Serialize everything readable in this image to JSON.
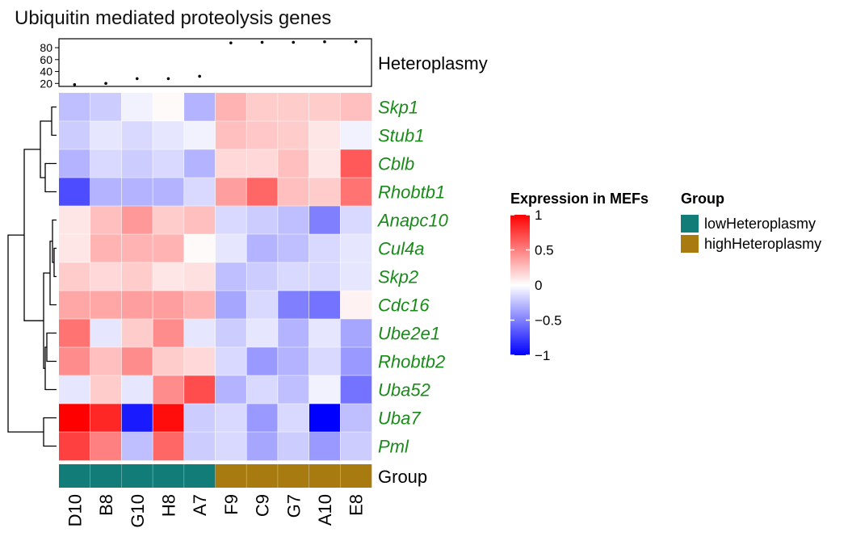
{
  "chart_data": {
    "type": "heatmap",
    "title": "Ubiquitin mediated proteolysis genes",
    "samples": [
      "D10",
      "B8",
      "G10",
      "H8",
      "A7",
      "F9",
      "C9",
      "G7",
      "A10",
      "E8"
    ],
    "genes": [
      "Skp1",
      "Stub1",
      "Cblb",
      "Rhobtb1",
      "Anapc10",
      "Cul4a",
      "Skp2",
      "Cdc16",
      "Ube2e1",
      "Rhobtb2",
      "Uba52",
      "Uba7",
      "Pml"
    ],
    "values": [
      [
        -0.25,
        -0.2,
        -0.05,
        0.02,
        -0.3,
        0.3,
        0.2,
        0.2,
        0.2,
        0.25
      ],
      [
        -0.2,
        -0.1,
        -0.15,
        -0.1,
        -0.05,
        0.25,
        0.22,
        0.2,
        0.1,
        -0.05
      ],
      [
        -0.3,
        -0.15,
        -0.2,
        -0.15,
        -0.3,
        0.15,
        0.15,
        0.25,
        0.1,
        0.65
      ],
      [
        -0.7,
        -0.3,
        -0.3,
        -0.3,
        -0.15,
        0.38,
        0.6,
        0.25,
        0.2,
        0.55
      ],
      [
        0.1,
        0.25,
        0.4,
        0.2,
        0.25,
        -0.15,
        -0.2,
        -0.25,
        -0.5,
        -0.15
      ],
      [
        0.1,
        0.3,
        0.3,
        0.3,
        0.02,
        -0.1,
        -0.3,
        -0.25,
        -0.15,
        -0.1
      ],
      [
        0.2,
        0.15,
        0.2,
        0.1,
        0.12,
        -0.25,
        -0.2,
        -0.15,
        -0.15,
        -0.1
      ],
      [
        0.35,
        0.35,
        0.38,
        0.38,
        0.3,
        -0.35,
        -0.15,
        -0.5,
        -0.55,
        0.05
      ],
      [
        0.55,
        -0.1,
        0.2,
        0.45,
        -0.1,
        -0.2,
        -0.1,
        -0.3,
        -0.1,
        -0.35
      ],
      [
        0.45,
        0.25,
        0.45,
        0.2,
        0.15,
        -0.15,
        -0.4,
        -0.3,
        -0.15,
        -0.4
      ],
      [
        -0.1,
        0.2,
        -0.1,
        0.45,
        0.7,
        -0.3,
        -0.15,
        -0.25,
        -0.05,
        -0.55
      ],
      [
        1.0,
        0.85,
        -0.9,
        0.95,
        -0.2,
        -0.15,
        -0.4,
        -0.15,
        -1.0,
        -0.25
      ],
      [
        0.75,
        0.5,
        -0.25,
        0.6,
        -0.2,
        -0.15,
        -0.35,
        -0.2,
        -0.4,
        -0.2
      ]
    ],
    "heteroplasmy": {
      "label": "Heteroplasmy",
      "values": [
        18,
        20,
        28,
        28,
        32,
        88,
        89,
        89,
        90,
        90
      ],
      "ylim": [
        15,
        95
      ],
      "ticks": [
        20,
        40,
        60,
        80
      ]
    },
    "groups": {
      "label": "Group",
      "assignment": [
        "lowHeteroplasmy",
        "lowHeteroplasmy",
        "lowHeteroplasmy",
        "lowHeteroplasmy",
        "lowHeteroplasmy",
        "highHeteroplasmy",
        "highHeteroplasmy",
        "highHeteroplasmy",
        "highHeteroplasmy",
        "highHeteroplasmy"
      ]
    },
    "color_legend": {
      "title": "Expression in MEFs",
      "min": -1,
      "max": 1,
      "ticks": [
        1,
        0.5,
        0,
        -0.5,
        -1
      ],
      "tick_labels": [
        "1",
        "0.5",
        "0",
        "−0.5",
        "−1"
      ],
      "low_color": "#0000ff",
      "mid_color": "#ffffff",
      "high_color": "#ff0000"
    },
    "group_legend": {
      "title": "Group",
      "items": [
        {
          "name": "lowHeteroplasmy",
          "color": "#127d78"
        },
        {
          "name": "highHeteroplasmy",
          "color": "#a87b10"
        }
      ]
    },
    "gene_label_color": "#1a8a1a",
    "legend_position": "right"
  }
}
